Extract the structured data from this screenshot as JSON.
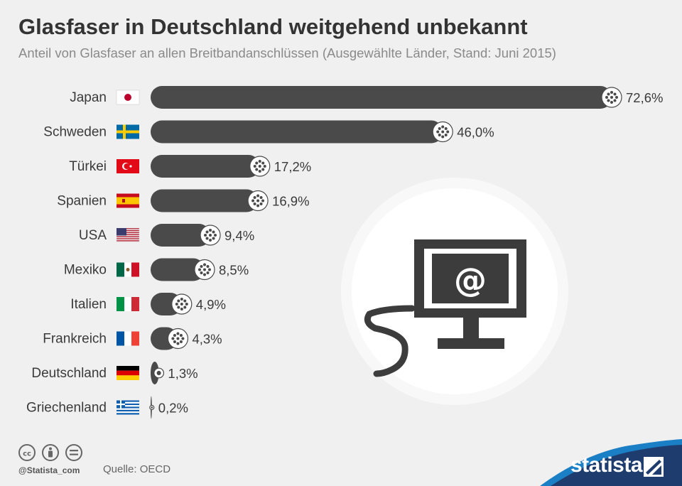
{
  "header": {
    "title": "Glasfaser in Deutschland weitgehend unbekannt",
    "subtitle": "Anteil von Glasfaser an allen Breitbandanschlüssen (Ausgewählte Länder, Stand: Juni 2015)"
  },
  "chart_data": {
    "type": "bar",
    "orientation": "horizontal",
    "title": "Glasfaser in Deutschland weitgehend unbekannt",
    "subtitle": "Anteil von Glasfaser an allen Breitbandanschlüssen (Ausgewählte Länder, Stand: Juni 2015)",
    "categories": [
      "Japan",
      "Schweden",
      "Türkei",
      "Spanien",
      "USA",
      "Mexiko",
      "Italien",
      "Frankreich",
      "Deutschland",
      "Griechenland"
    ],
    "values": [
      72.6,
      46.0,
      17.2,
      16.9,
      9.4,
      8.5,
      4.9,
      4.3,
      1.3,
      0.2
    ],
    "value_labels": [
      "72,6%",
      "46,0%",
      "17,2%",
      "16,9%",
      "9,4%",
      "8,5%",
      "4,9%",
      "4,3%",
      "1,3%",
      "0,2%"
    ],
    "unit": "%",
    "xlim": [
      0,
      72.6
    ],
    "bar_color": "#4a4a4a",
    "illustration_icon": "computer-monitor-icon",
    "illustration_symbol": "@"
  },
  "footer": {
    "handle": "@Statista_com",
    "source": "Quelle: OECD",
    "brand": "statista",
    "license_icons": [
      "cc-icon",
      "by-icon",
      "nd-icon"
    ]
  },
  "colors": {
    "background": "#f0f0f0",
    "bar": "#4a4a4a",
    "brand_blue": "#1e3d6e",
    "accent_blue": "#1a7fc4"
  }
}
